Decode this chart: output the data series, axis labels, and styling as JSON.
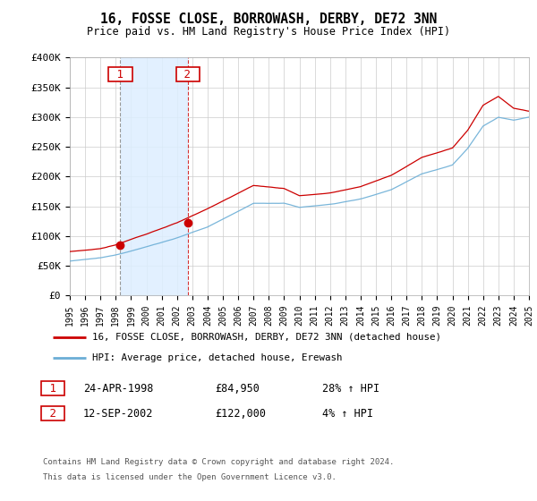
{
  "title": "16, FOSSE CLOSE, BORROWASH, DERBY, DE72 3NN",
  "subtitle": "Price paid vs. HM Land Registry's House Price Index (HPI)",
  "legend_line1": "16, FOSSE CLOSE, BORROWASH, DERBY, DE72 3NN (detached house)",
  "legend_line2": "HPI: Average price, detached house, Erewash",
  "transaction1_date": "24-APR-1998",
  "transaction1_price": "£84,950",
  "transaction1_hpi": "28% ↑ HPI",
  "transaction2_date": "12-SEP-2002",
  "transaction2_price": "£122,000",
  "transaction2_hpi": "4% ↑ HPI",
  "footer": "Contains HM Land Registry data © Crown copyright and database right 2024.\nThis data is licensed under the Open Government Licence v3.0.",
  "hpi_color": "#6baed6",
  "price_color": "#cc0000",
  "shaded_color": "#ddeeff",
  "ylim": [
    0,
    400000
  ],
  "yticks": [
    0,
    50000,
    100000,
    150000,
    200000,
    250000,
    300000,
    350000,
    400000
  ],
  "transaction1_x": 1998.3,
  "transaction2_x": 2002.7,
  "figsize": [
    6.0,
    5.6
  ],
  "dpi": 100
}
